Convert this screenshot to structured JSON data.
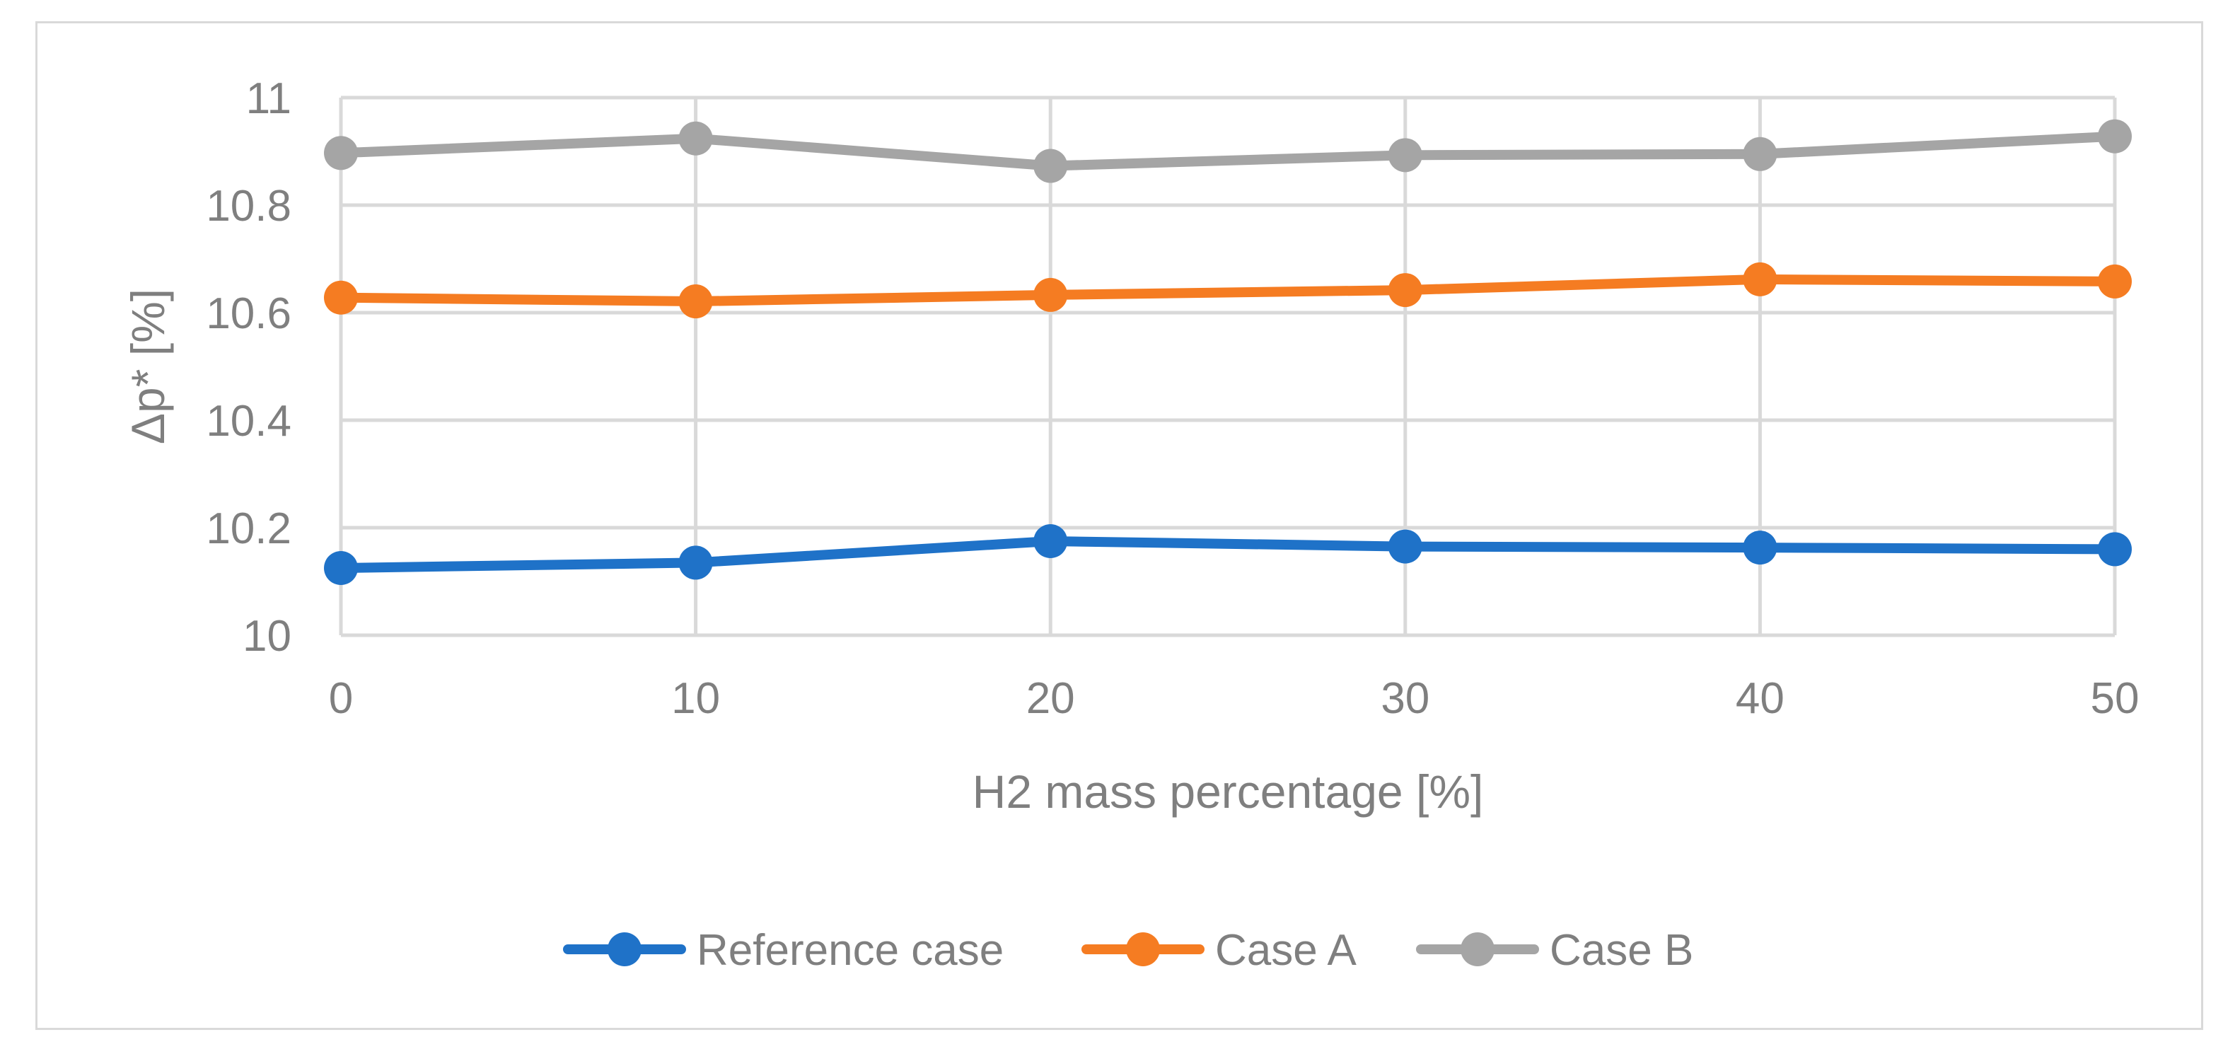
{
  "chart_data": {
    "type": "line",
    "title": "",
    "xlabel": "H2 mass percentage [%]",
    "ylabel": "Δp* [%]",
    "x": [
      0,
      10,
      20,
      30,
      40,
      50
    ],
    "xlim": [
      0,
      50
    ],
    "ylim": [
      10,
      11
    ],
    "xticks": [
      "0",
      "10",
      "20",
      "30",
      "40",
      "50"
    ],
    "yticks": [
      "10",
      "10.2",
      "10.4",
      "10.6",
      "10.8",
      "11"
    ],
    "grid": true,
    "legend_position": "bottom",
    "series": [
      {
        "name": "Reference case",
        "color": "#1f72c8",
        "values": [
          10.125,
          10.135,
          10.175,
          10.165,
          10.163,
          10.16
        ]
      },
      {
        "name": "Case A",
        "color": "#f57c22",
        "values": [
          10.628,
          10.621,
          10.633,
          10.642,
          10.662,
          10.658
        ]
      },
      {
        "name": "Case B",
        "color": "#a5a5a5",
        "values": [
          10.897,
          10.924,
          10.873,
          10.893,
          10.895,
          10.928
        ]
      }
    ]
  }
}
